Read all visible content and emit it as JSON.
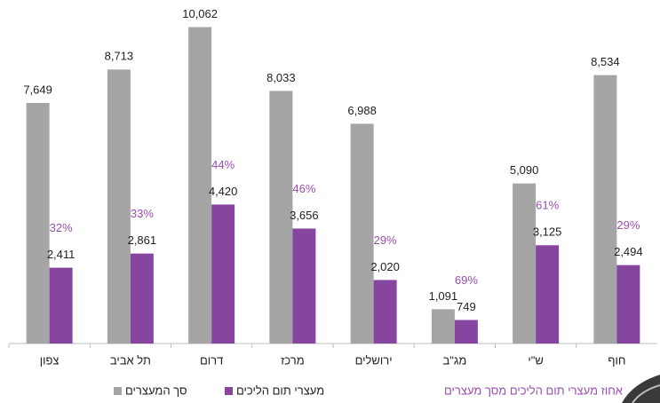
{
  "chart_data": {
    "type": "bar",
    "categories": [
      "צפון",
      "תל אביב",
      "דרום",
      "מרכז",
      "ירושלים",
      "מג\"ב",
      "ש\"י",
      "חוף"
    ],
    "series": [
      {
        "name": "סך המעצרים",
        "color": "#a5a5a5",
        "values": [
          7649,
          8713,
          10062,
          8033,
          6988,
          1091,
          5090,
          8534
        ],
        "value_labels": [
          "7,649",
          "8,713",
          "10,062",
          "8,033",
          "6,988",
          "1,091",
          "5,090",
          "8,534"
        ]
      },
      {
        "name": "מעצרי תום הליכים",
        "color": "#8646a0",
        "values": [
          2411,
          2861,
          4420,
          3656,
          2020,
          749,
          3125,
          2494
        ],
        "value_labels": [
          "2,411",
          "2,861",
          "4,420",
          "3,656",
          "2,020",
          "749",
          "3,125",
          "2,494"
        ]
      }
    ],
    "percentages": {
      "name": "אחוז מעצרי תום הליכים מסך מעצרים",
      "color": "#9a4fb0",
      "values": [
        32,
        33,
        44,
        46,
        29,
        69,
        61,
        29
      ],
      "value_labels": [
        "32%",
        "33%",
        "44%",
        "46%",
        "29%",
        "69%",
        "61%",
        "29%"
      ]
    },
    "ylim": [
      0,
      10500
    ]
  }
}
